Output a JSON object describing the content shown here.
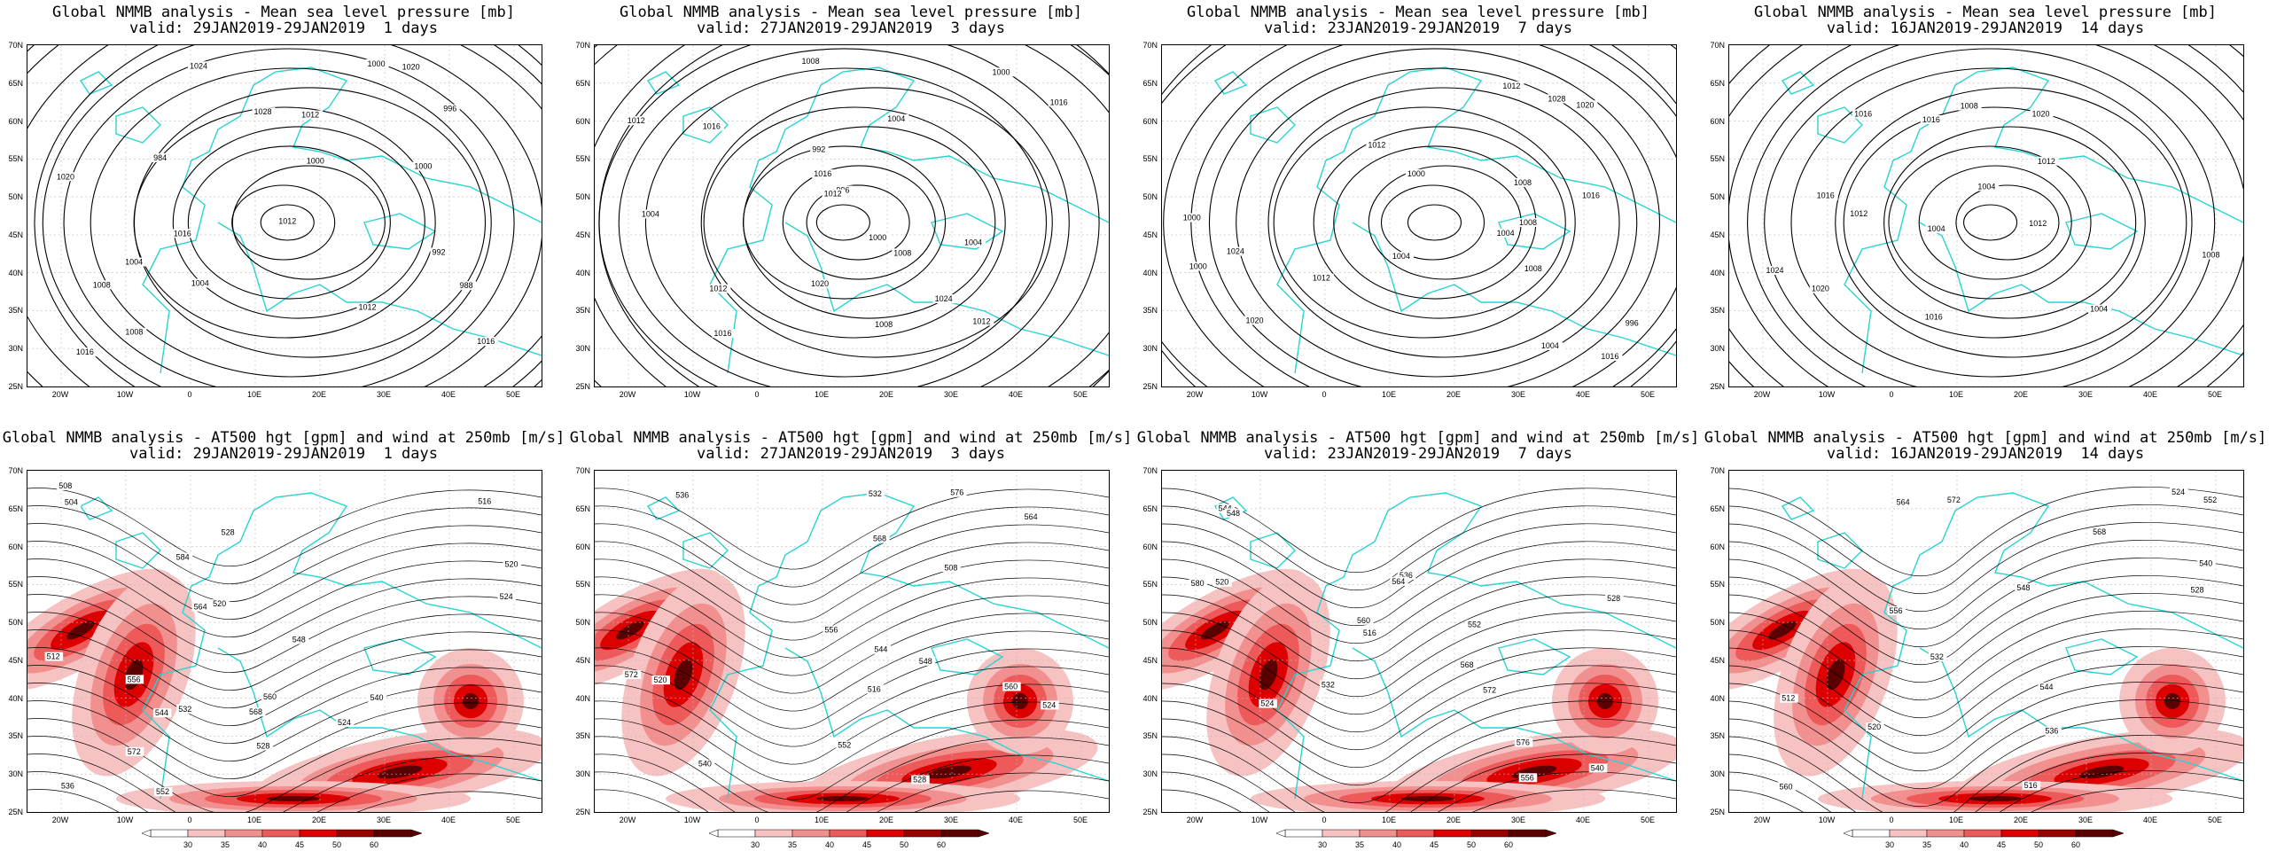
{
  "panels": [
    {
      "title1": "Global NMMB analysis - Mean sea level pressure [mb]",
      "title2": "valid: 29JAN2019-29JAN2019  1 days",
      "kind": "mslp",
      "labels": [
        "1000",
        "988",
        "996",
        "984",
        "992",
        "1000",
        "1004",
        "1008",
        "1012",
        "1016",
        "1020",
        "1024",
        "1028",
        "1016",
        "1012",
        "1008",
        "1004",
        "1000",
        "1020",
        "1016",
        "1012"
      ]
    },
    {
      "title1": "Global NMMB analysis - Mean sea level pressure [mb]",
      "title2": "valid: 27JAN2019-29JAN2019  3 days",
      "kind": "mslp",
      "labels": [
        "1004",
        "992",
        "1000",
        "996",
        "1004",
        "1008",
        "1012",
        "1016",
        "1012",
        "1008",
        "1004",
        "1000",
        "1020",
        "1024",
        "1012",
        "1016",
        "1016",
        "1016",
        "1012",
        "1008"
      ]
    },
    {
      "title1": "Global NMMB analysis - Mean sea level pressure [mb]",
      "title2": "valid: 23JAN2019-29JAN2019  7 days",
      "kind": "mslp",
      "labels": [
        "1000",
        "996",
        "1004",
        "1008",
        "1004",
        "1000",
        "1008",
        "1012",
        "1016",
        "1020",
        "1024",
        "1028",
        "1012",
        "1004",
        "1000",
        "1008",
        "1012",
        "1016",
        "1020"
      ]
    },
    {
      "title1": "Global NMMB analysis - Mean sea level pressure [mb]",
      "title2": "valid: 16JAN2019-29JAN2019  14 days",
      "kind": "mslp",
      "labels": [
        "1004",
        "1004",
        "1004",
        "1008",
        "1012",
        "1012",
        "1008",
        "1016",
        "1020",
        "1016",
        "1020",
        "1024",
        "1016",
        "1012",
        "1016"
      ]
    },
    {
      "title1": "Global NMMB analysis - AT500 hgt [gpm] and wind at 250mb [m/s]",
      "title2": "valid: 29JAN2019-29JAN2019  1 days",
      "kind": "hgt",
      "labels": [
        "504",
        "508",
        "512",
        "516",
        "520",
        "524",
        "528",
        "532",
        "536",
        "540",
        "544",
        "548",
        "552",
        "556",
        "560",
        "564",
        "568",
        "572",
        "584",
        "520",
        "524",
        "528"
      ]
    },
    {
      "title1": "Global NMMB analysis - AT500 hgt [gpm] and wind at 250mb [m/s]",
      "title2": "valid: 27JAN2019-29JAN2019  3 days",
      "kind": "hgt",
      "labels": [
        "508",
        "516",
        "520",
        "524",
        "528",
        "532",
        "536",
        "540",
        "544",
        "548",
        "552",
        "556",
        "560",
        "564",
        "568",
        "572",
        "576"
      ]
    },
    {
      "title1": "Global NMMB analysis - AT500 hgt [gpm] and wind at 250mb [m/s]",
      "title2": "valid: 23JAN2019-29JAN2019  7 days",
      "kind": "hgt",
      "labels": [
        "516",
        "520",
        "524",
        "528",
        "532",
        "536",
        "540",
        "544",
        "548",
        "552",
        "556",
        "560",
        "564",
        "568",
        "572",
        "576",
        "580"
      ]
    },
    {
      "title1": "Global NMMB analysis - AT500 hgt [gpm] and wind at 250mb [m/s]",
      "title2": "valid: 16JAN2019-29JAN2019  14 days",
      "kind": "hgt",
      "labels": [
        "512",
        "516",
        "520",
        "524",
        "528",
        "532",
        "536",
        "540",
        "544",
        "548",
        "552",
        "556",
        "560",
        "564",
        "568",
        "572"
      ]
    }
  ],
  "lat_ticks": [
    "70N",
    "65N",
    "60N",
    "55N",
    "50N",
    "45N",
    "40N",
    "35N",
    "30N",
    "25N"
  ],
  "lon_ticks": [
    "20W",
    "10W",
    "0",
    "10E",
    "20E",
    "30E",
    "40E",
    "50E"
  ],
  "colorbar_ticks": [
    "30",
    "35",
    "40",
    "45",
    "50",
    "60"
  ],
  "colors": {
    "coast": "#29d3d3",
    "contour": "#000000",
    "grid": "#bbbbbb",
    "jet_light": "#f6c2c2",
    "jet_mid": "#ee5a5a",
    "jet_strong": "#dd0000",
    "jet_max": "#5a0000"
  }
}
